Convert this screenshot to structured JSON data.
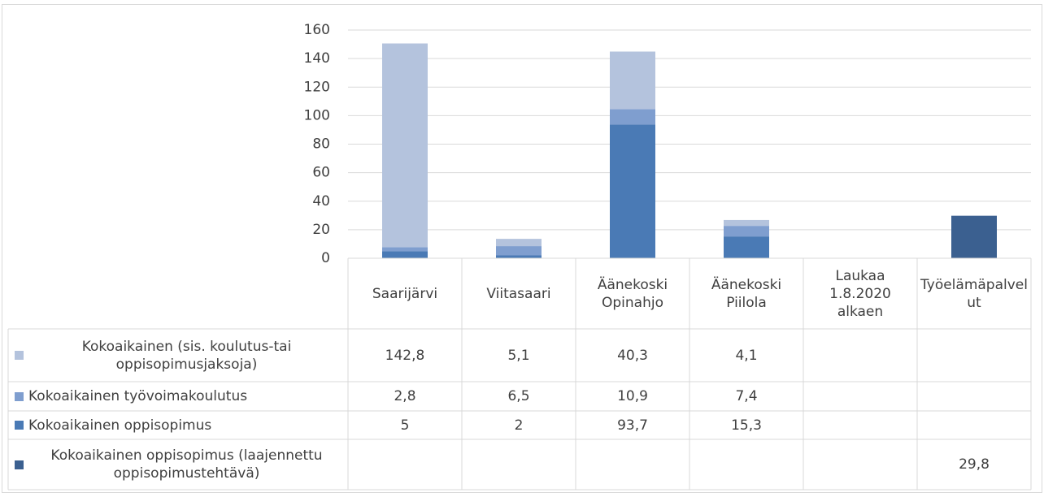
{
  "chart_data": {
    "type": "stacked_bar",
    "categories": [
      "Saarijärvi",
      "Viitasaari",
      "Äänekoski Opinahjo",
      "Äänekoski Piilola",
      "Laukaa 1.8.2020 alkaen",
      "Työelämäpalvelut"
    ],
    "series": [
      {
        "name": "Kokoaikainen (sis. koulutus-tai oppisopimusjaksoja)",
        "color": "#b4c3dd",
        "values": [
          142.8,
          5.1,
          40.3,
          4.1,
          null,
          null
        ],
        "value_labels": [
          "142,8",
          "5,1",
          "40,3",
          "4,1",
          null,
          null
        ]
      },
      {
        "name": "Kokoaikainen työvoimakoulutus",
        "color": "#7f9ecf",
        "values": [
          2.8,
          6.5,
          10.9,
          7.4,
          null,
          null
        ],
        "value_labels": [
          "2,8",
          "6,5",
          "10,9",
          "7,4",
          null,
          null
        ]
      },
      {
        "name": "Kokoaikainen oppisopimus",
        "color": "#4a7ab5",
        "values": [
          5,
          2,
          93.7,
          15.3,
          null,
          null
        ],
        "value_labels": [
          "5",
          "2",
          "93,7",
          "15,3",
          null,
          null
        ]
      },
      {
        "name": "Kokoaikainen oppisopimus (laajennettu oppisopimustehtävä)",
        "color": "#3b6090",
        "values": [
          null,
          null,
          null,
          null,
          null,
          29.8
        ],
        "value_labels": [
          null,
          null,
          null,
          null,
          null,
          "29,8"
        ]
      }
    ],
    "ylim": [
      0,
      160
    ],
    "yticks": [
      0,
      20,
      40,
      60,
      80,
      100,
      120,
      140,
      160
    ],
    "grid": true
  }
}
